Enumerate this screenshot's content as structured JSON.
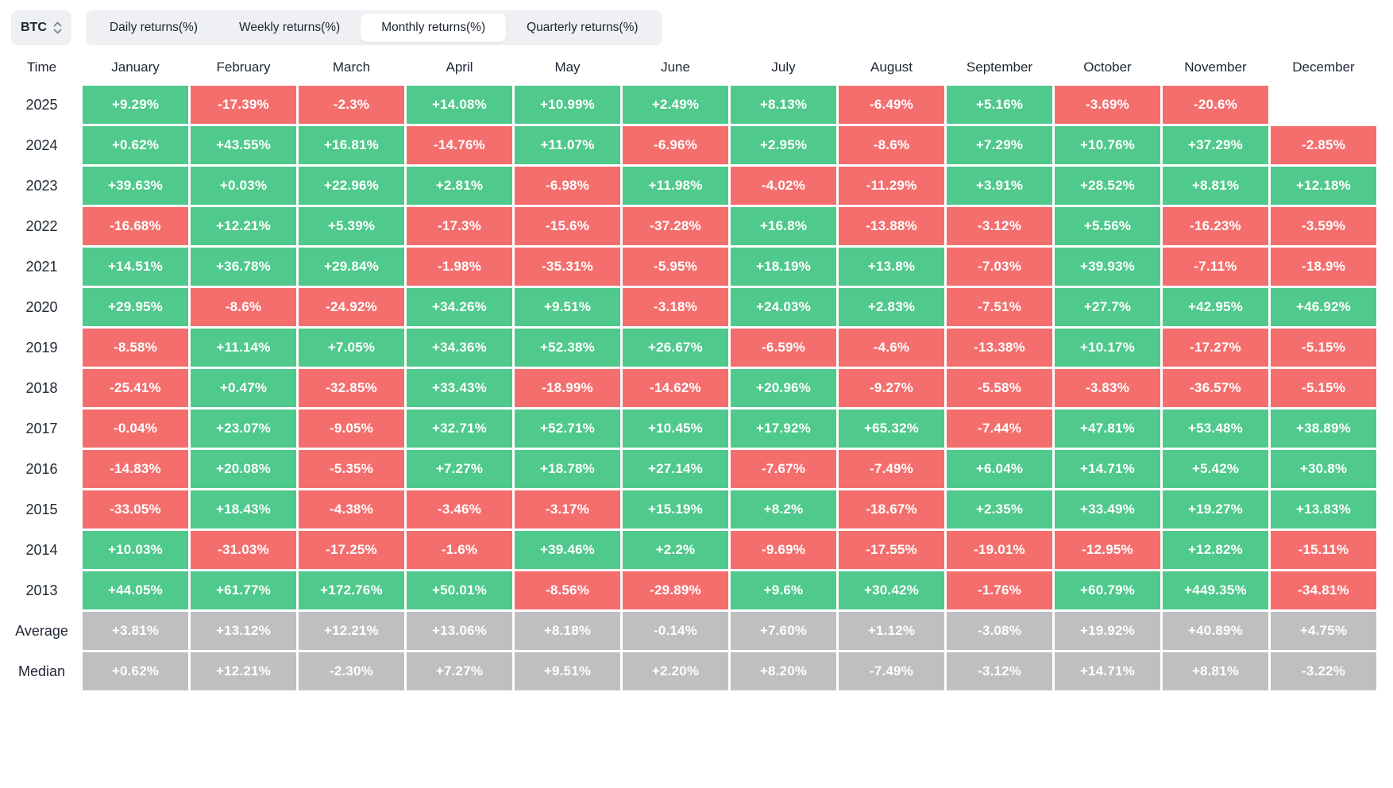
{
  "controls": {
    "symbol": "BTC",
    "tabs": [
      {
        "label": "Daily returns(%)",
        "active": false
      },
      {
        "label": "Weekly returns(%)",
        "active": false
      },
      {
        "label": "Monthly returns(%)",
        "active": true
      },
      {
        "label": "Quarterly returns(%)",
        "active": false
      }
    ]
  },
  "table": {
    "time_header": "Time",
    "months": [
      "January",
      "February",
      "March",
      "April",
      "May",
      "June",
      "July",
      "August",
      "September",
      "October",
      "November",
      "December"
    ],
    "rows": [
      {
        "label": "2025",
        "type": "year",
        "values": [
          "+9.29%",
          "-17.39%",
          "-2.3%",
          "+14.08%",
          "+10.99%",
          "+2.49%",
          "+8.13%",
          "-6.49%",
          "+5.16%",
          "-3.69%",
          "-20.6%",
          null
        ]
      },
      {
        "label": "2024",
        "type": "year",
        "values": [
          "+0.62%",
          "+43.55%",
          "+16.81%",
          "-14.76%",
          "+11.07%",
          "-6.96%",
          "+2.95%",
          "-8.6%",
          "+7.29%",
          "+10.76%",
          "+37.29%",
          "-2.85%"
        ]
      },
      {
        "label": "2023",
        "type": "year",
        "values": [
          "+39.63%",
          "+0.03%",
          "+22.96%",
          "+2.81%",
          "-6.98%",
          "+11.98%",
          "-4.02%",
          "-11.29%",
          "+3.91%",
          "+28.52%",
          "+8.81%",
          "+12.18%"
        ]
      },
      {
        "label": "2022",
        "type": "year",
        "values": [
          "-16.68%",
          "+12.21%",
          "+5.39%",
          "-17.3%",
          "-15.6%",
          "-37.28%",
          "+16.8%",
          "-13.88%",
          "-3.12%",
          "+5.56%",
          "-16.23%",
          "-3.59%"
        ]
      },
      {
        "label": "2021",
        "type": "year",
        "values": [
          "+14.51%",
          "+36.78%",
          "+29.84%",
          "-1.98%",
          "-35.31%",
          "-5.95%",
          "+18.19%",
          "+13.8%",
          "-7.03%",
          "+39.93%",
          "-7.11%",
          "-18.9%"
        ]
      },
      {
        "label": "2020",
        "type": "year",
        "values": [
          "+29.95%",
          "-8.6%",
          "-24.92%",
          "+34.26%",
          "+9.51%",
          "-3.18%",
          "+24.03%",
          "+2.83%",
          "-7.51%",
          "+27.7%",
          "+42.95%",
          "+46.92%"
        ]
      },
      {
        "label": "2019",
        "type": "year",
        "values": [
          "-8.58%",
          "+11.14%",
          "+7.05%",
          "+34.36%",
          "+52.38%",
          "+26.67%",
          "-6.59%",
          "-4.6%",
          "-13.38%",
          "+10.17%",
          "-17.27%",
          "-5.15%"
        ]
      },
      {
        "label": "2018",
        "type": "year",
        "values": [
          "-25.41%",
          "+0.47%",
          "-32.85%",
          "+33.43%",
          "-18.99%",
          "-14.62%",
          "+20.96%",
          "-9.27%",
          "-5.58%",
          "-3.83%",
          "-36.57%",
          "-5.15%"
        ]
      },
      {
        "label": "2017",
        "type": "year",
        "values": [
          "-0.04%",
          "+23.07%",
          "-9.05%",
          "+32.71%",
          "+52.71%",
          "+10.45%",
          "+17.92%",
          "+65.32%",
          "-7.44%",
          "+47.81%",
          "+53.48%",
          "+38.89%"
        ]
      },
      {
        "label": "2016",
        "type": "year",
        "values": [
          "-14.83%",
          "+20.08%",
          "-5.35%",
          "+7.27%",
          "+18.78%",
          "+27.14%",
          "-7.67%",
          "-7.49%",
          "+6.04%",
          "+14.71%",
          "+5.42%",
          "+30.8%"
        ]
      },
      {
        "label": "2015",
        "type": "year",
        "values": [
          "-33.05%",
          "+18.43%",
          "-4.38%",
          "-3.46%",
          "-3.17%",
          "+15.19%",
          "+8.2%",
          "-18.67%",
          "+2.35%",
          "+33.49%",
          "+19.27%",
          "+13.83%"
        ]
      },
      {
        "label": "2014",
        "type": "year",
        "values": [
          "+10.03%",
          "-31.03%",
          "-17.25%",
          "-1.6%",
          "+39.46%",
          "+2.2%",
          "-9.69%",
          "-17.55%",
          "-19.01%",
          "-12.95%",
          "+12.82%",
          "-15.11%"
        ]
      },
      {
        "label": "2013",
        "type": "year",
        "values": [
          "+44.05%",
          "+61.77%",
          "+172.76%",
          "+50.01%",
          "-8.56%",
          "-29.89%",
          "+9.6%",
          "+30.42%",
          "-1.76%",
          "+60.79%",
          "+449.35%",
          "-34.81%"
        ]
      },
      {
        "label": "Average",
        "type": "summary",
        "values": [
          "+3.81%",
          "+13.12%",
          "+12.21%",
          "+13.06%",
          "+8.18%",
          "-0.14%",
          "+7.60%",
          "+1.12%",
          "-3.08%",
          "+19.92%",
          "+40.89%",
          "+4.75%"
        ]
      },
      {
        "label": "Median",
        "type": "summary",
        "values": [
          "+0.62%",
          "+12.21%",
          "-2.30%",
          "+7.27%",
          "+9.51%",
          "+2.20%",
          "+8.20%",
          "-7.49%",
          "-3.12%",
          "+14.71%",
          "+8.81%",
          "-3.22%"
        ]
      }
    ]
  },
  "colors": {
    "positive": "#4fc98c",
    "negative": "#f56e6e",
    "summary": "#bfbfc1",
    "control_bg": "#eef0f3",
    "active_tab_bg": "#ffffff",
    "text_dark": "#1e2430",
    "cell_text": "#ffffff"
  }
}
